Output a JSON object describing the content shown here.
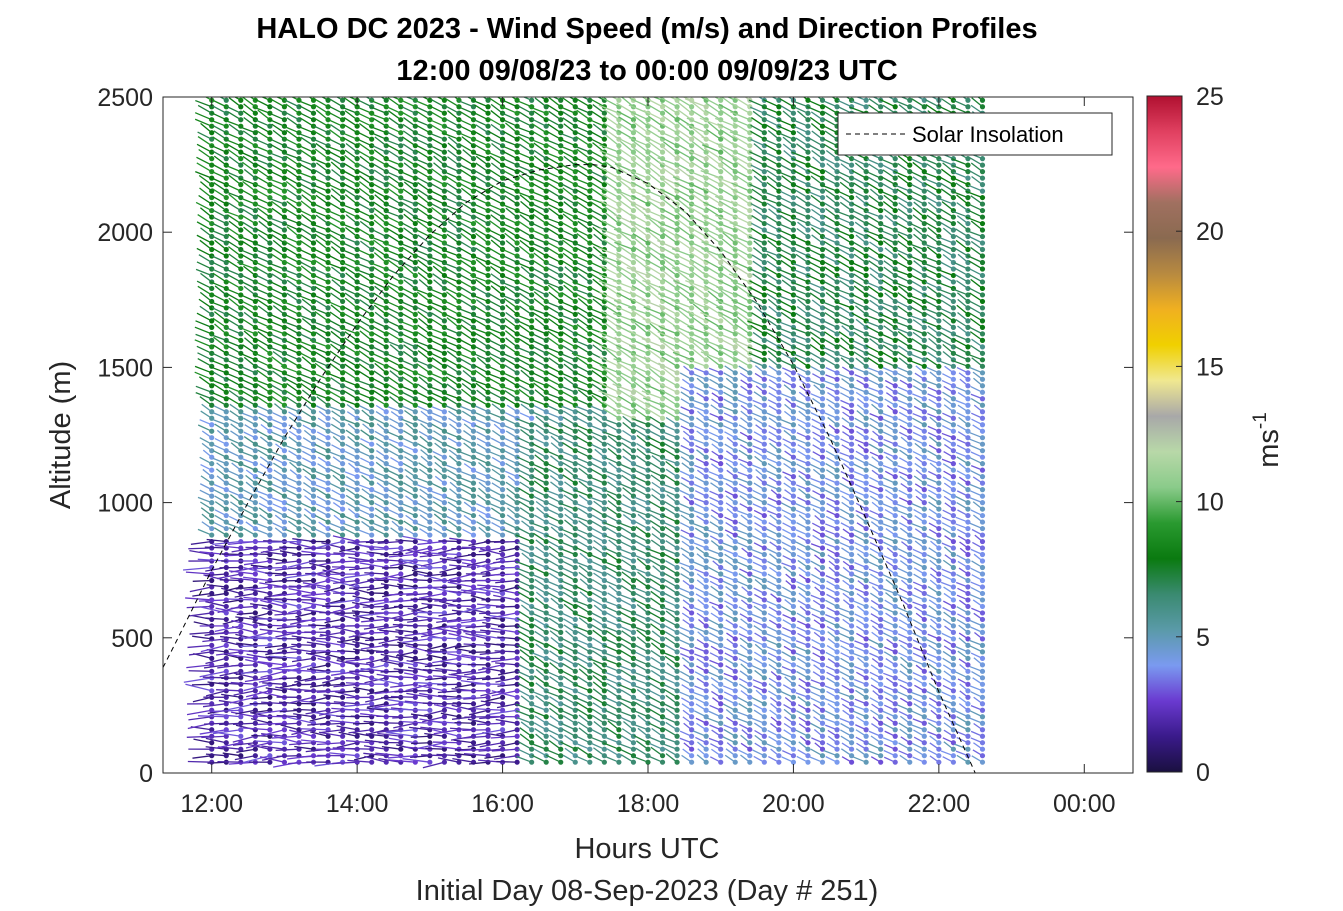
{
  "chart_data": {
    "type": "wind-barb-profile",
    "title_line1": "HALO DC 2023 - Wind Speed (m/s) and Direction Profiles",
    "title_line2": "12:00 09/08/23 to 00:00 09/09/23  UTC",
    "xlabel": "Hours UTC",
    "x_sublabel": "Initial Day 08-Sep-2023 (Day # 251)",
    "ylabel": "Altitude (m)",
    "x_ticks": [
      "12:00",
      "14:00",
      "16:00",
      "18:00",
      "20:00",
      "22:00",
      "00:00"
    ],
    "x_tick_hours": [
      12,
      14,
      16,
      18,
      20,
      22,
      24
    ],
    "xlim_hours": [
      11.33,
      24.67
    ],
    "y_ticks": [
      "0",
      "500",
      "1000",
      "1500",
      "2000",
      "2500"
    ],
    "y_tick_values": [
      0,
      500,
      1000,
      1500,
      2000,
      2500
    ],
    "ylim": [
      0,
      2500
    ],
    "profile_time_range_hours": [
      12.0,
      22.75
    ],
    "profile_interval_hours": 0.2,
    "altitude_range": [
      40,
      2500
    ],
    "colorbar": {
      "ticks": [
        "0",
        "5",
        "10",
        "15",
        "20",
        "25"
      ],
      "tick_values": [
        0,
        5,
        10,
        15,
        20,
        25
      ],
      "range": [
        0,
        25
      ],
      "label": "ms",
      "label_exponent": "-1",
      "colors": [
        "#1a1040",
        "#3a1a8a",
        "#6a3ad0",
        "#7a9af0",
        "#5a9aa8",
        "#3a8a70",
        "#0a7a10",
        "#2a9a30",
        "#8acb8a",
        "#b8d8a8",
        "#a8a8a8",
        "#f0e890",
        "#f0d000",
        "#f0b020",
        "#b88a40",
        "#8a6a50",
        "#a07060",
        "#ff6a8a",
        "#e04060",
        "#b01030"
      ]
    },
    "legend": {
      "label": "Solar Insolation",
      "position": "top-right",
      "style": "dashed"
    },
    "solar_insolation": {
      "x_hours": [
        11.33,
        11.5,
        12.0,
        12.5,
        13.0,
        13.5,
        14.0,
        14.5,
        15.0,
        15.5,
        16.0,
        16.5,
        17.0,
        17.25,
        17.5,
        18.0,
        18.5,
        19.0,
        19.5,
        20.0,
        20.5,
        21.0,
        21.5,
        22.0,
        22.5,
        23.0,
        23.2,
        23.25,
        24.67
      ],
      "y_altitude": [
        390,
        480,
        750,
        1000,
        1240,
        1460,
        1660,
        1840,
        1990,
        2110,
        2190,
        2230,
        2250,
        2250,
        2240,
        2180,
        2080,
        1930,
        1740,
        1510,
        1240,
        940,
        630,
        300,
        0,
        0,
        0,
        0,
        0
      ]
    },
    "speed_regions_description": [
      {
        "t0": 12,
        "t1": 16.3,
        "z0": 0,
        "z1": 880,
        "speed": 2.0
      },
      {
        "t0": 12,
        "t1": 16.5,
        "z0": 880,
        "z1": 1350,
        "speed": 5.0
      },
      {
        "t0": 12,
        "t1": 17.5,
        "z0": 1350,
        "z1": 2500,
        "speed": 8.0
      },
      {
        "t0": 16.3,
        "t1": 18.5,
        "z0": 0,
        "z1": 1300,
        "speed": 6.5
      },
      {
        "t0": 17.5,
        "t1": 19.5,
        "z0": 1300,
        "z1": 2500,
        "speed": 11.0
      },
      {
        "t0": 18.5,
        "t1": 22.75,
        "z0": 0,
        "z1": 1500,
        "speed": 4.0
      },
      {
        "t0": 19.5,
        "t1": 22.75,
        "z0": 1500,
        "z1": 2500,
        "speed": 7.0
      }
    ]
  }
}
